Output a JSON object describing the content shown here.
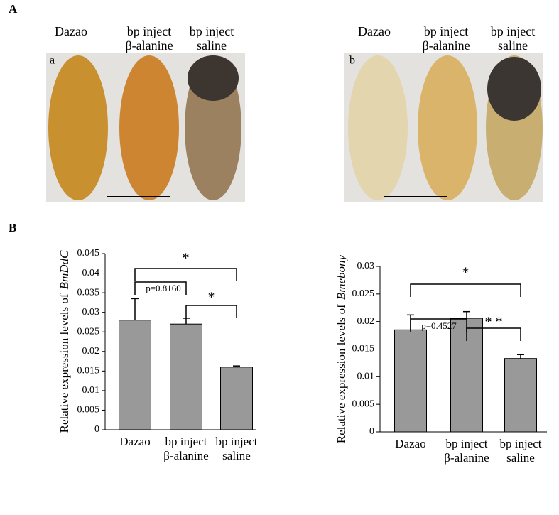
{
  "panel_labels": [
    "A",
    "B"
  ],
  "photo_panels": [
    {
      "letter": "a",
      "labels": [
        {
          "line1": "Dazao"
        },
        {
          "line1": "bp inject",
          "line2": "β-alanine"
        },
        {
          "line1": "bp inject",
          "line2": "saline"
        }
      ]
    },
    {
      "letter": "b",
      "labels": [
        {
          "line1": "Dazao"
        },
        {
          "line1": "bp inject",
          "line2": "β-alanine"
        },
        {
          "line1": "bp inject",
          "line2": "saline"
        }
      ]
    }
  ],
  "chart_data": [
    {
      "type": "bar",
      "y_label": "Relative expression levels of",
      "y_label_gene": "BmDdC",
      "categories": [
        [
          "Dazao"
        ],
        [
          "bp inject",
          "β-alanine"
        ],
        [
          "bp inject",
          "saline"
        ]
      ],
      "values": [
        0.028,
        0.027,
        0.016
      ],
      "errors": [
        0.0055,
        0.0015,
        0.0003
      ],
      "color": "#999999",
      "ylim": [
        0,
        0.045
      ],
      "yticks": [
        0,
        0.005,
        0.01,
        0.015,
        0.02,
        0.025,
        0.03,
        0.035,
        0.04,
        0.045
      ],
      "annotations": [
        "*",
        "p=0.8160",
        "*"
      ]
    },
    {
      "type": "bar",
      "y_label": "Relative expression levels of",
      "y_label_gene": "Bmebony",
      "categories": [
        [
          "Dazao"
        ],
        [
          "bp inject",
          "β-alanine"
        ],
        [
          "bp inject",
          "saline"
        ]
      ],
      "values": [
        0.0185,
        0.0206,
        0.0133
      ],
      "errors": [
        0.0027,
        0.0012,
        0.0007
      ],
      "color": "#999999",
      "ylim": [
        0,
        0.03
      ],
      "yticks": [
        0,
        0.005,
        0.01,
        0.015,
        0.02,
        0.025,
        0.03
      ],
      "annotations": [
        "*",
        "p=0.4527",
        "* *"
      ]
    }
  ]
}
